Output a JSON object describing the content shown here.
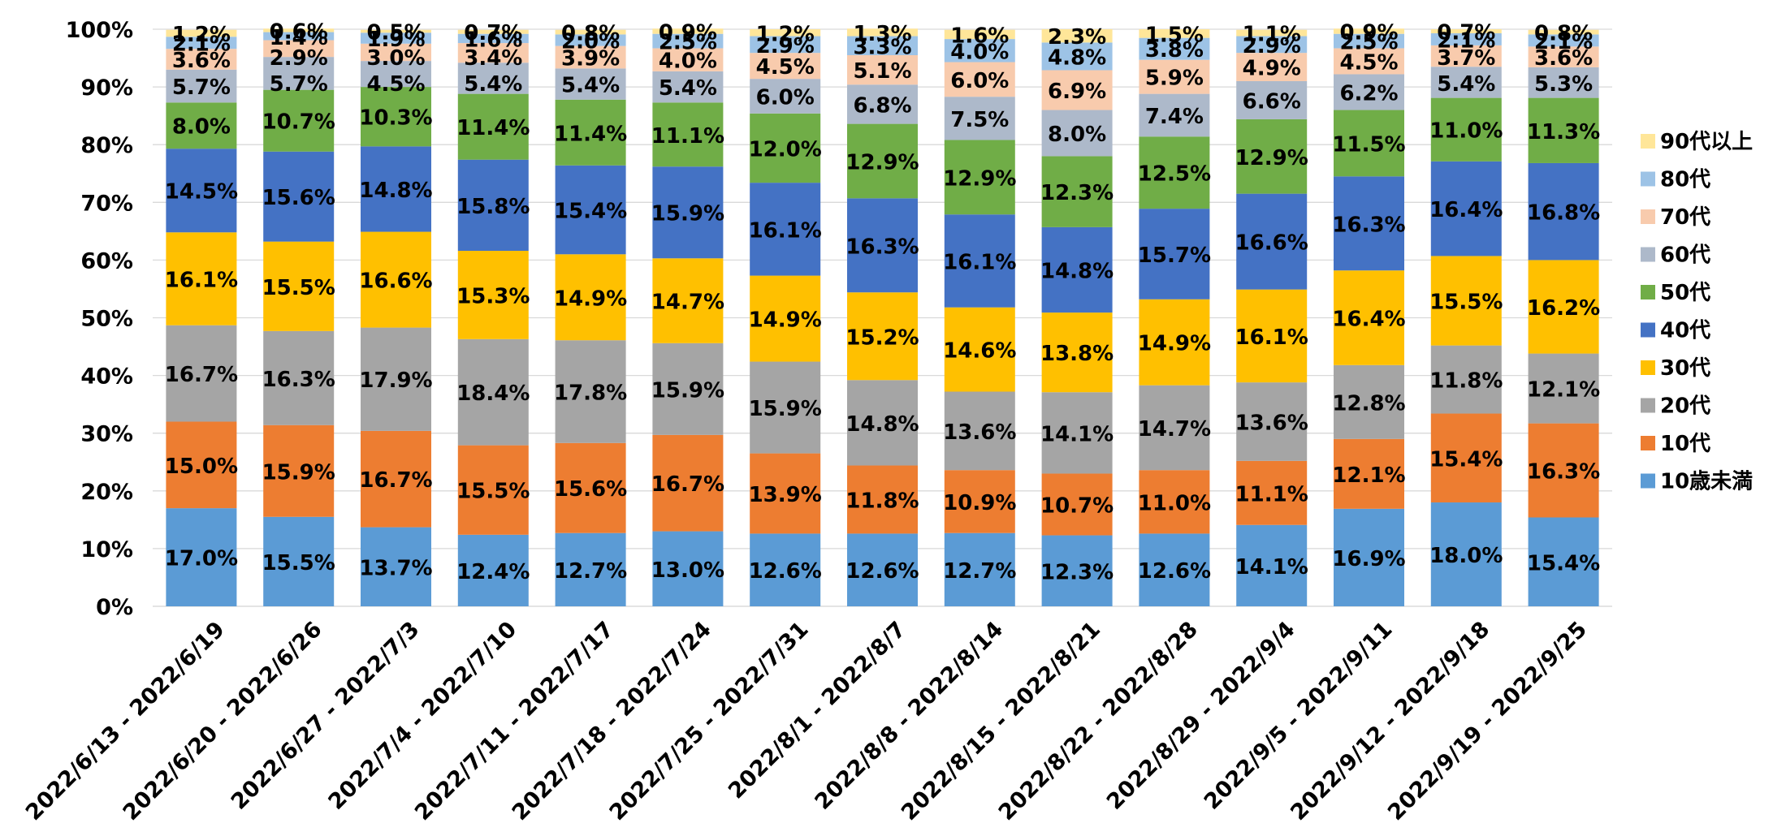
{
  "chart_data": {
    "type": "bar",
    "stacked": true,
    "percent": true,
    "title": "",
    "xlabel": "",
    "ylabel": "",
    "ylim": [
      0,
      100
    ],
    "y_ticks": [
      "0%",
      "10%",
      "20%",
      "30%",
      "40%",
      "50%",
      "60%",
      "70%",
      "80%",
      "90%",
      "100%"
    ],
    "grid": true,
    "legend_position": "right",
    "categories": [
      "2022/6/13 - 2022/6/19",
      "2022/6/20 - 2022/6/26",
      "2022/6/27 - 2022/7/3",
      "2022/7/4 - 2022/7/10",
      "2022/7/11 - 2022/7/17",
      "2022/7/18 - 2022/7/24",
      "2022/7/25 - 2022/7/31",
      "2022/8/1 - 2022/8/7",
      "2022/8/8 - 2022/8/14",
      "2022/8/15 - 2022/8/21",
      "2022/8/22 - 2022/8/28",
      "2022/8/29 - 2022/9/4",
      "2022/9/5 - 2022/9/11",
      "2022/9/12 - 2022/9/18",
      "2022/9/19 - 2022/9/25"
    ],
    "series": [
      {
        "name": "10歳未満",
        "color": "#5b9bd5",
        "values": [
          17.0,
          15.5,
          13.7,
          12.4,
          12.7,
          13.0,
          12.6,
          12.6,
          12.7,
          12.3,
          12.6,
          14.1,
          16.9,
          18.0,
          15.4
        ]
      },
      {
        "name": "10代",
        "color": "#ed7d31",
        "values": [
          15.0,
          15.9,
          16.7,
          15.5,
          15.6,
          16.7,
          13.9,
          11.8,
          10.9,
          10.7,
          11.0,
          11.1,
          12.1,
          15.4,
          16.3
        ]
      },
      {
        "name": "20代",
        "color": "#a5a5a5",
        "values": [
          16.7,
          16.3,
          17.9,
          18.4,
          17.8,
          15.9,
          15.9,
          14.8,
          13.6,
          14.1,
          14.7,
          13.6,
          12.8,
          11.8,
          12.1
        ]
      },
      {
        "name": "30代",
        "color": "#ffc000",
        "values": [
          16.1,
          15.5,
          16.6,
          15.3,
          14.9,
          14.7,
          14.9,
          15.2,
          14.6,
          13.8,
          14.9,
          16.1,
          16.4,
          15.5,
          16.2
        ]
      },
      {
        "name": "40代",
        "color": "#4472c4",
        "values": [
          14.5,
          15.6,
          14.8,
          15.8,
          15.4,
          15.9,
          16.1,
          16.3,
          16.1,
          14.8,
          15.7,
          16.6,
          16.3,
          16.4,
          16.8
        ]
      },
      {
        "name": "50代",
        "color": "#70ad47",
        "values": [
          8.0,
          10.7,
          10.3,
          11.4,
          11.4,
          11.1,
          12.0,
          12.9,
          12.9,
          12.3,
          12.5,
          12.9,
          11.5,
          11.0,
          11.3
        ]
      },
      {
        "name": "60代",
        "color": "#adb9ca",
        "values": [
          5.7,
          5.7,
          4.5,
          5.4,
          5.4,
          5.4,
          6.0,
          6.8,
          7.5,
          8.0,
          7.4,
          6.6,
          6.2,
          5.4,
          5.3
        ]
      },
      {
        "name": "70代",
        "color": "#f8cbad",
        "values": [
          3.6,
          2.9,
          3.0,
          3.4,
          3.9,
          4.0,
          4.5,
          5.1,
          6.0,
          6.9,
          5.9,
          4.9,
          4.5,
          3.7,
          3.6
        ]
      },
      {
        "name": "80代",
        "color": "#9dc3e6",
        "values": [
          2.1,
          1.4,
          1.9,
          1.6,
          2.0,
          2.5,
          2.9,
          3.3,
          4.0,
          4.8,
          3.8,
          2.9,
          2.5,
          2.1,
          2.1
        ]
      },
      {
        "name": "90代以上",
        "color": "#ffe699",
        "values": [
          1.2,
          0.6,
          0.5,
          0.7,
          0.8,
          0.9,
          1.2,
          1.3,
          1.6,
          2.3,
          1.5,
          1.1,
          0.9,
          0.7,
          0.8
        ]
      }
    ],
    "gridline_color": "#d9d9d9"
  }
}
